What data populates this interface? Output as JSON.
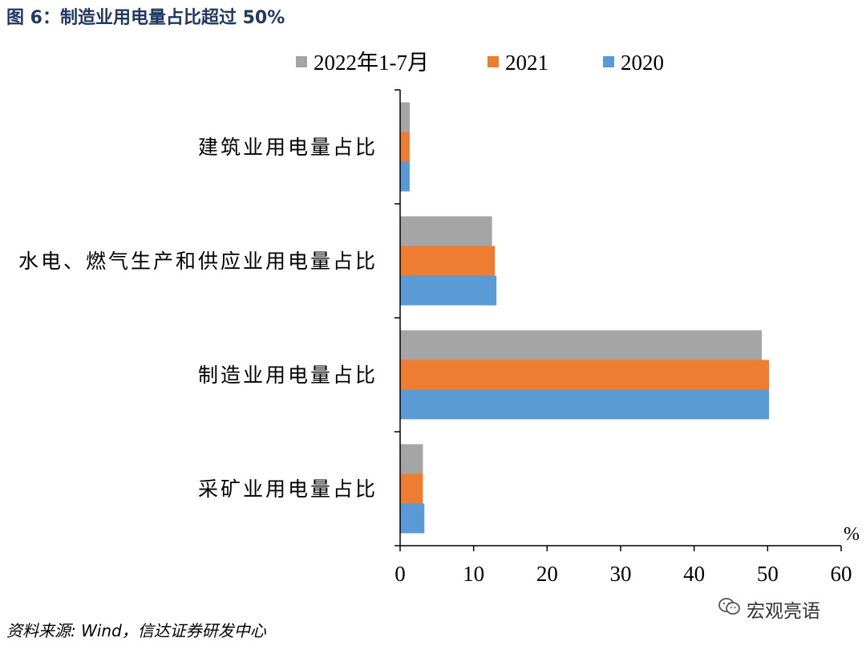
{
  "figure_title": "图 6：制造业用电量占比超过 50%",
  "source_note": "资料来源: Wind，信达证券研发中心",
  "watermark": "宏观亮语",
  "chart_data": {
    "type": "bar",
    "orientation": "horizontal",
    "categories": [
      "建筑业用电量占比",
      "水电、燃气生产和供应业用电量占比",
      "制造业用电量占比",
      "采矿业用电量占比"
    ],
    "series": [
      {
        "name": "2022年1-7月",
        "color": "#a5a5a5",
        "values": [
          1.3,
          12.5,
          49.2,
          3.1
        ]
      },
      {
        "name": "2021",
        "color": "#ed7d31",
        "values": [
          1.3,
          12.9,
          50.2,
          3.1
        ]
      },
      {
        "name": "2020",
        "color": "#5b9bd5",
        "values": [
          1.3,
          13.1,
          50.2,
          3.3
        ]
      }
    ],
    "x_ticks": [
      "0",
      "10",
      "20",
      "30",
      "40",
      "50",
      "60"
    ],
    "xlim": [
      0,
      60
    ],
    "unit_label": "%",
    "legend_position": "top",
    "grid": false
  }
}
